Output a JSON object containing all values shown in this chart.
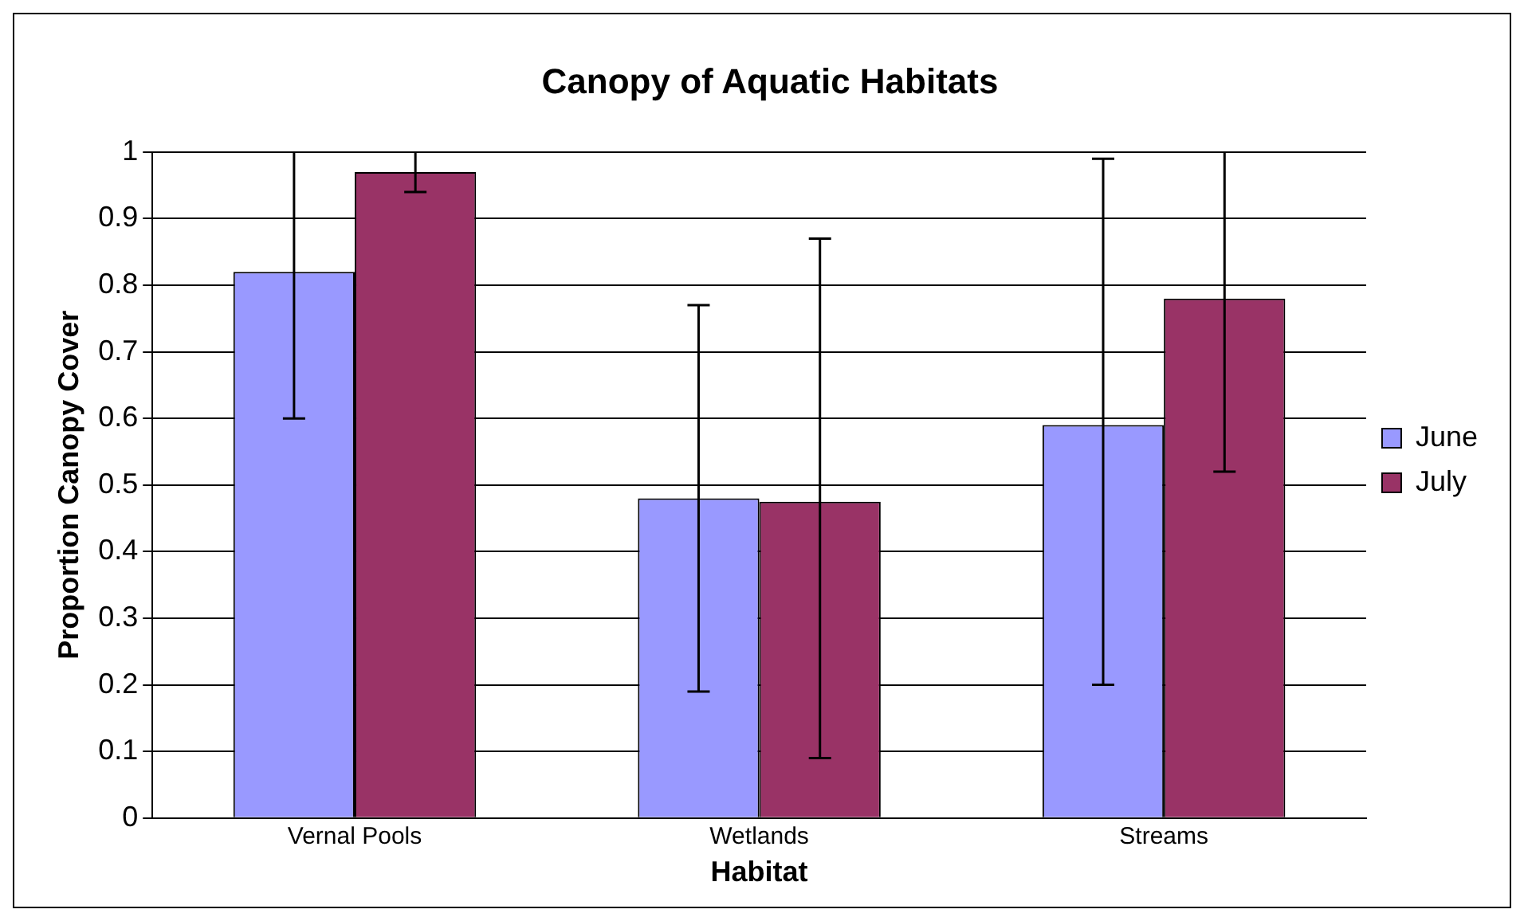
{
  "chart_data": {
    "type": "bar",
    "title": "Canopy of Aquatic Habitats",
    "xlabel": "Habitat",
    "ylabel": "Proportion Canopy Cover",
    "categories": [
      "Vernal Pools",
      "Wetlands",
      "Streams"
    ],
    "series": [
      {
        "name": "June",
        "color": "#9999ff",
        "values": [
          0.82,
          0.48,
          0.59
        ],
        "errors": [
          [
            0.6,
            1
          ],
          [
            0.19,
            0.77
          ],
          [
            0.2,
            0.99
          ]
        ]
      },
      {
        "name": "July",
        "color": "#993366",
        "values": [
          0.97,
          0.475,
          0.78
        ],
        "errors": [
          [
            0.94,
            1
          ],
          [
            0.09,
            0.87
          ],
          [
            0.52,
            1
          ]
        ]
      }
    ],
    "ylim": [
      0,
      1
    ],
    "yticks": [
      0,
      0.1,
      0.2,
      0.3,
      0.4,
      0.5,
      0.6,
      0.7,
      0.8,
      0.9,
      1
    ],
    "grid": "y",
    "legend": "right"
  }
}
